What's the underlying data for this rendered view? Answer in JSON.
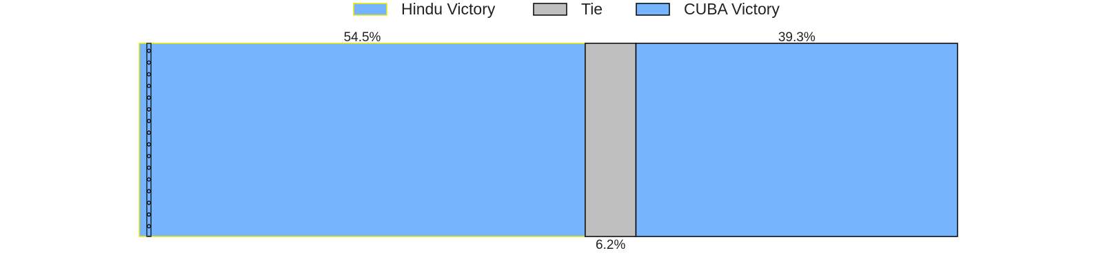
{
  "chart_data": {
    "type": "bar",
    "orientation": "horizontal-stacked",
    "categories": [
      ""
    ],
    "series": [
      {
        "name": "Hindu Victory",
        "values": [
          54.5
        ],
        "label": "54.5%",
        "label_position": "top",
        "fill": "#76b5fd",
        "edge": "#e8e800"
      },
      {
        "name": "Tie",
        "values": [
          6.2
        ],
        "label": "6.2%",
        "label_position": "bottom",
        "fill": "#bfbfbf",
        "edge": "#000000"
      },
      {
        "name": "CUBA Victory",
        "values": [
          39.3
        ],
        "label": "39.3%",
        "label_position": "top",
        "fill": "#76b5fd",
        "edge": "#000000"
      }
    ],
    "xlim": [
      0,
      100
    ],
    "title": "",
    "xlabel": "",
    "ylabel": "",
    "grid": false,
    "axes_visible": false,
    "legend_placement": "top-center",
    "hatched_strip_near_start": true
  }
}
